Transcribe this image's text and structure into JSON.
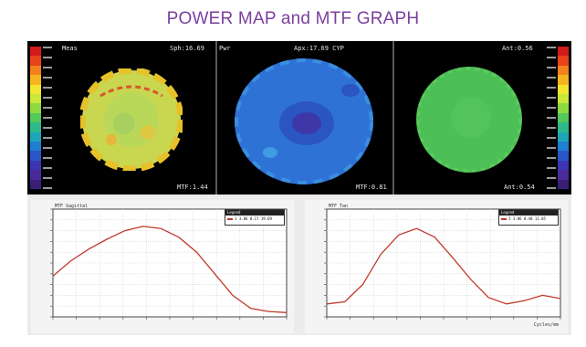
{
  "page_title": "POWER MAP and MTF GRAPH",
  "power_map": {
    "left_map": {
      "title_left": "Meas",
      "title_right": "Sph:16.69",
      "footer_right": "MTF:1.44"
    },
    "center_map": {
      "title_left": "Pwr",
      "title_right": "Apx:17.69 CYP",
      "footer_right": "MTF:0.81"
    },
    "right_map": {
      "title_right": "Ant:0.56",
      "footer_right": "Ant:0.54"
    },
    "scale_colors": [
      "#d11a1a",
      "#e8431a",
      "#f2821c",
      "#f6b51f",
      "#f3e531",
      "#c9e83a",
      "#8edb3f",
      "#52c95a",
      "#2fb98a",
      "#1ea6b8",
      "#1f7fd0",
      "#2a55c9",
      "#3c35b2",
      "#4a2a9a",
      "#3a1f78"
    ],
    "colors": {
      "left_disc_base": "#bfd84a",
      "left_disc_ring": "#e7c52e",
      "center_disc_base": "#2f6fd4",
      "center_disc_inner": "#2a4fb8",
      "center_disc_core": "#3e38a8",
      "right_disc_base": "#4bbf58"
    }
  },
  "mtf_graphs": {
    "left": {
      "title": "MTF Sagittal",
      "legend_header": "Legend",
      "legend_entry": "1  3.86  0.17  19.69",
      "curve_color": "#c0392b"
    },
    "right": {
      "title": "MTF Tan",
      "legend_header": "Legend",
      "legend_entry": "1  3.86  0.48  11.05",
      "curve_color": "#c0392b",
      "x_axis_label": "Cycles/mm"
    }
  },
  "chart_data": [
    {
      "type": "line",
      "title": "MTF Sagittal",
      "x": [
        0,
        1,
        2,
        3,
        4,
        5,
        6,
        7,
        8,
        9,
        10,
        11,
        12,
        13
      ],
      "series": [
        {
          "name": "1",
          "values": [
            0.38,
            0.52,
            0.63,
            0.72,
            0.8,
            0.84,
            0.82,
            0.74,
            0.6,
            0.4,
            0.2,
            0.08,
            0.05,
            0.04
          ]
        }
      ],
      "ylim": [
        0,
        1
      ],
      "grid": true
    },
    {
      "type": "line",
      "title": "MTF Tan",
      "x": [
        0,
        1,
        2,
        3,
        4,
        5,
        6,
        7,
        8,
        9,
        10,
        11,
        12,
        13
      ],
      "series": [
        {
          "name": "1",
          "values": [
            0.12,
            0.14,
            0.3,
            0.58,
            0.76,
            0.82,
            0.74,
            0.55,
            0.35,
            0.18,
            0.12,
            0.15,
            0.2,
            0.17
          ]
        }
      ],
      "ylim": [
        0,
        1
      ],
      "grid": true
    }
  ]
}
